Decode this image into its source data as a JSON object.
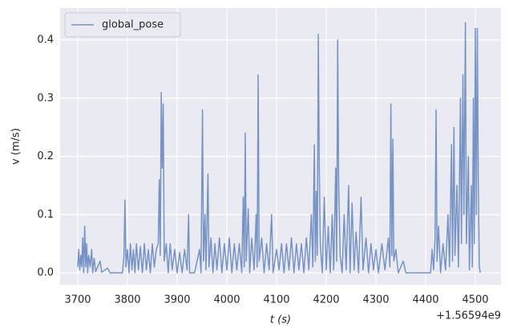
{
  "chart_data": {
    "type": "line",
    "xlabel": "t (s)",
    "ylabel": "v (m/s)",
    "x_offset_label": "+1.56594e9",
    "xlim": [
      3664.5,
      4551.6
    ],
    "ylim": [
      -0.0206,
      0.455
    ],
    "xticks": [
      3700,
      3800,
      3900,
      4000,
      4100,
      4200,
      4300,
      4400,
      4500
    ],
    "yticks": [
      {
        "value": 0,
        "label": "0.0"
      },
      0.1,
      0.2,
      0.3,
      0.4
    ],
    "grid": true,
    "legend": "upper left",
    "x": [
      3700,
      3702,
      3704,
      3706,
      3708,
      3710,
      3712,
      3714,
      3716,
      3718,
      3720,
      3722,
      3725,
      3728,
      3730,
      3733,
      3736,
      3745,
      3748,
      3760,
      3765,
      3790,
      3793,
      3795,
      3797,
      3800,
      3803,
      3806,
      3809,
      3812,
      3815,
      3818,
      3822,
      3826,
      3830,
      3834,
      3838,
      3842,
      3846,
      3850,
      3854,
      3858,
      3862,
      3864,
      3866,
      3868,
      3870,
      3872,
      3874,
      3878,
      3882,
      3886,
      3890,
      3895,
      3900,
      3905,
      3910,
      3915,
      3920,
      3923,
      3925,
      3935,
      3940,
      3945,
      3948,
      3951,
      3953,
      3956,
      3958,
      3962,
      3964,
      3968,
      3972,
      3976,
      3980,
      3985,
      3990,
      3995,
      4000,
      4005,
      4010,
      4015,
      4020,
      4025,
      4030,
      4033,
      4035,
      4037,
      4039,
      4043,
      4046,
      4050,
      4055,
      4059,
      4061,
      4063,
      4065,
      4070,
      4075,
      4080,
      4085,
      4090,
      4093,
      4100,
      4105,
      4110,
      4115,
      4120,
      4125,
      4130,
      4135,
      4140,
      4145,
      4150,
      4155,
      4160,
      4165,
      4170,
      4173,
      4176,
      4178,
      4180,
      4182,
      4184,
      4186,
      4188,
      4192,
      4196,
      4200,
      4204,
      4208,
      4212,
      4215,
      4219,
      4221,
      4223,
      4225,
      4228,
      4232,
      4236,
      4240,
      4245,
      4248,
      4252,
      4256,
      4260,
      4265,
      4270,
      4274,
      4280,
      4285,
      4290,
      4295,
      4300,
      4305,
      4312,
      4318,
      4325,
      4328,
      4330,
      4332,
      4334,
      4336,
      4340,
      4345,
      4355,
      4360,
      4410,
      4413,
      4416,
      4419,
      4421,
      4423,
      4426,
      4430,
      4435,
      4440,
      4445,
      4448,
      4452,
      4454,
      4457,
      4459,
      4463,
      4466,
      4470,
      4472,
      4475,
      4477,
      4480,
      4482,
      4486,
      4488,
      4492,
      4494,
      4496,
      4498,
      4500,
      4502,
      4504,
      4506,
      4508,
      4510
    ],
    "series": [
      {
        "name": "global_pose",
        "color": "#7793c5",
        "values": [
          0.01,
          0.04,
          0.005,
          0.03,
          0.01,
          0.06,
          0.0,
          0.08,
          0.01,
          0.05,
          0.0,
          0.03,
          0.01,
          0.04,
          0.0,
          0.025,
          0.002,
          0.02,
          0.001,
          0.008,
          0.0,
          0.0,
          0.03,
          0.125,
          0.01,
          0.04,
          0.0,
          0.05,
          0.005,
          0.04,
          0.0,
          0.05,
          0.005,
          0.045,
          0.0,
          0.05,
          0.005,
          0.04,
          0.0,
          0.05,
          0.01,
          0.04,
          0.05,
          0.16,
          0.03,
          0.31,
          0.18,
          0.29,
          0.02,
          0.05,
          0.0,
          0.05,
          0.005,
          0.04,
          0.0,
          0.035,
          0.0,
          0.04,
          0.005,
          0.1,
          0.0,
          0.0,
          0.02,
          0.04,
          0.0,
          0.28,
          0.02,
          0.1,
          0.005,
          0.17,
          0.01,
          0.06,
          0.0,
          0.05,
          0.005,
          0.06,
          0.0,
          0.05,
          0.005,
          0.06,
          0.0,
          0.05,
          0.005,
          0.05,
          0.0,
          0.13,
          0.01,
          0.24,
          0.02,
          0.11,
          0.0,
          0.06,
          0.005,
          0.1,
          0.01,
          0.34,
          0.02,
          0.06,
          0.0,
          0.05,
          0.005,
          0.1,
          0.0,
          0.04,
          0.005,
          0.05,
          0.0,
          0.05,
          0.005,
          0.06,
          0.0,
          0.05,
          0.005,
          0.05,
          0.0,
          0.06,
          0.005,
          0.1,
          0.01,
          0.22,
          0.02,
          0.14,
          0.03,
          0.41,
          0.18,
          0.05,
          0.0,
          0.13,
          0.005,
          0.08,
          0.0,
          0.1,
          0.005,
          0.18,
          0.02,
          0.4,
          0.15,
          0.03,
          0.0,
          0.1,
          0.005,
          0.15,
          0.0,
          0.12,
          0.005,
          0.07,
          0.0,
          0.13,
          0.005,
          0.06,
          0.0,
          0.05,
          0.005,
          0.04,
          0.0,
          0.05,
          0.005,
          0.06,
          0.01,
          0.29,
          0.03,
          0.23,
          0.02,
          0.04,
          0.0,
          0.02,
          0.0,
          0.0,
          0.04,
          0.005,
          0.06,
          0.28,
          0.02,
          0.08,
          0.0,
          0.05,
          0.005,
          0.1,
          0.01,
          0.22,
          0.02,
          0.25,
          0.03,
          0.15,
          0.01,
          0.3,
          0.05,
          0.34,
          0.1,
          0.43,
          0.05,
          0.2,
          0.005,
          0.15,
          0.01,
          0.3,
          0.05,
          0.42,
          0.1,
          0.42,
          0.15,
          0.01,
          0.0
        ]
      }
    ]
  }
}
